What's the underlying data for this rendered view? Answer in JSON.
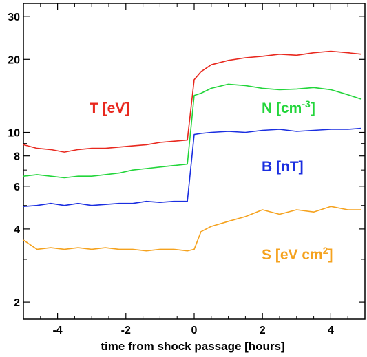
{
  "chart_data": {
    "type": "line",
    "xlabel": "time from shock passage [hours]",
    "xlim": [
      -5,
      5
    ],
    "ylim": [
      1.7,
      34
    ],
    "yscale": "log",
    "grid": false,
    "x_ticks": [
      -4,
      -2,
      0,
      2,
      4
    ],
    "x_tick_labels": [
      "-4",
      "-2",
      "0",
      "2",
      "4"
    ],
    "y_ticks": [
      2,
      4,
      6,
      8,
      10,
      20,
      30
    ],
    "y_tick_labels": [
      "2",
      "4",
      "6",
      "8",
      "10",
      "20",
      "30"
    ],
    "series": [
      {
        "label_main": "T [eV]",
        "label_sup": "",
        "label_tail": "",
        "color": "#e8281e",
        "x": [
          -5,
          -4.6,
          -4.2,
          -3.8,
          -3.4,
          -3.0,
          -2.6,
          -2.2,
          -1.8,
          -1.4,
          -1.0,
          -0.6,
          -0.2,
          0.0,
          0.2,
          0.5,
          1.0,
          1.5,
          2.0,
          2.5,
          3.0,
          3.5,
          4.0,
          4.5,
          4.9
        ],
        "y": [
          8.9,
          8.6,
          8.5,
          8.3,
          8.5,
          8.6,
          8.6,
          8.7,
          8.8,
          8.9,
          9.1,
          9.2,
          9.3,
          16.5,
          17.8,
          19.0,
          19.8,
          20.3,
          20.6,
          21.0,
          20.8,
          21.3,
          21.6,
          21.3,
          21.0
        ]
      },
      {
        "label_main": "N [cm",
        "label_sup": "-3",
        "label_tail": "]",
        "color": "#22d53a",
        "x": [
          -5,
          -4.6,
          -4.2,
          -3.8,
          -3.4,
          -3.0,
          -2.6,
          -2.2,
          -1.8,
          -1.4,
          -1.0,
          -0.6,
          -0.2,
          0.0,
          0.2,
          0.5,
          1.0,
          1.5,
          2.0,
          2.5,
          3.0,
          3.5,
          4.0,
          4.5,
          4.9
        ],
        "y": [
          6.6,
          6.7,
          6.6,
          6.5,
          6.6,
          6.6,
          6.7,
          6.8,
          7.0,
          7.1,
          7.2,
          7.3,
          7.4,
          14.2,
          14.5,
          15.2,
          15.8,
          15.6,
          15.2,
          15.0,
          15.1,
          15.3,
          15.0,
          14.3,
          13.7
        ]
      },
      {
        "label_main": "B [nT]",
        "label_sup": "",
        "label_tail": "",
        "color": "#1a2ee0",
        "x": [
          -5,
          -4.6,
          -4.2,
          -3.8,
          -3.4,
          -3.0,
          -2.6,
          -2.2,
          -1.8,
          -1.4,
          -1.0,
          -0.6,
          -0.2,
          0.0,
          0.2,
          0.5,
          1.0,
          1.5,
          2.0,
          2.5,
          3.0,
          3.5,
          4.0,
          4.5,
          4.9
        ],
        "y": [
          4.95,
          5.0,
          5.1,
          5.0,
          5.1,
          5.0,
          5.05,
          5.1,
          5.1,
          5.2,
          5.15,
          5.2,
          5.2,
          9.8,
          9.9,
          10.0,
          10.1,
          10.0,
          10.2,
          10.3,
          10.1,
          10.2,
          10.3,
          10.3,
          10.4
        ]
      },
      {
        "label_main": "S [eV cm",
        "label_sup": "2",
        "label_tail": "]",
        "color": "#f5a21e",
        "x": [
          -5,
          -4.6,
          -4.2,
          -3.8,
          -3.4,
          -3.0,
          -2.6,
          -2.2,
          -1.8,
          -1.4,
          -1.0,
          -0.6,
          -0.2,
          0.0,
          0.2,
          0.5,
          1.0,
          1.5,
          2.0,
          2.5,
          3.0,
          3.5,
          4.0,
          4.5,
          4.9
        ],
        "y": [
          3.6,
          3.3,
          3.35,
          3.3,
          3.35,
          3.3,
          3.35,
          3.3,
          3.3,
          3.25,
          3.3,
          3.3,
          3.25,
          3.3,
          3.9,
          4.1,
          4.3,
          4.5,
          4.8,
          4.6,
          4.8,
          4.7,
          4.95,
          4.8,
          4.8
        ]
      }
    ]
  }
}
